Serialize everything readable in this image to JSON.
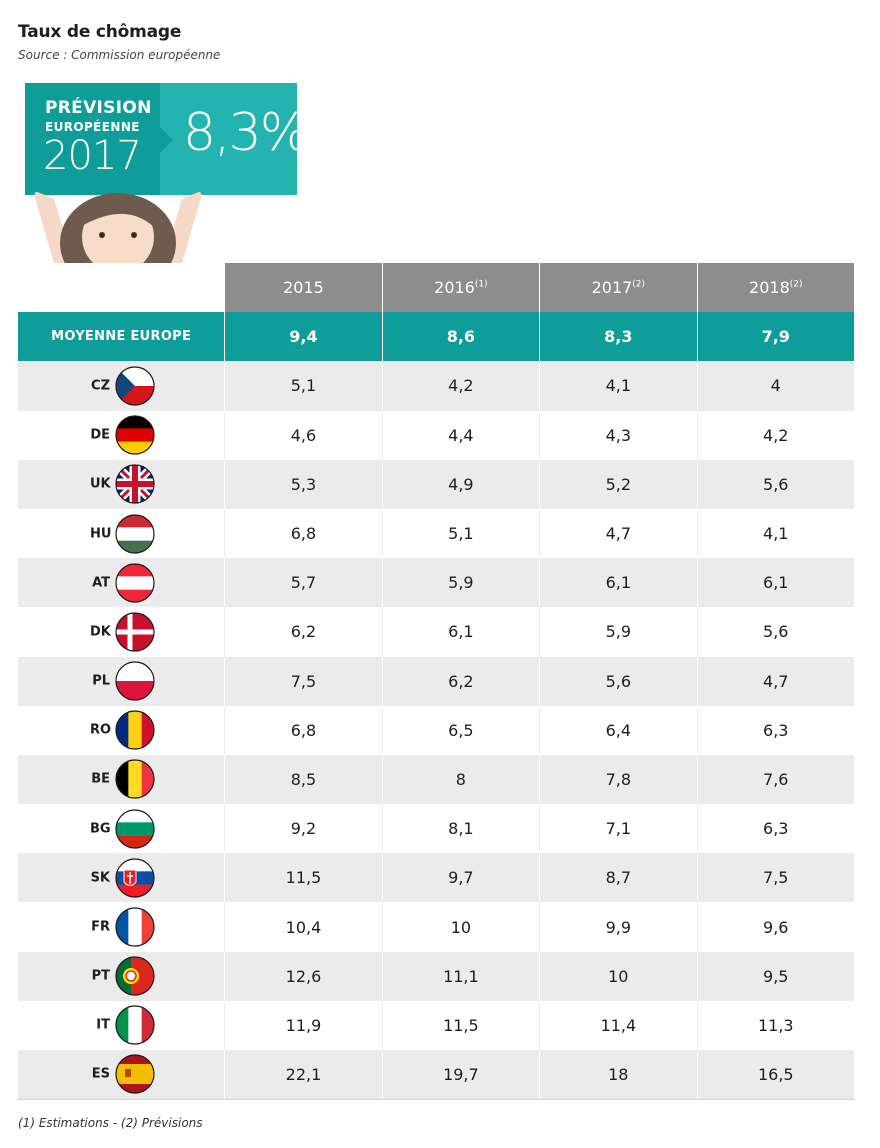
{
  "title": "Taux de chômage",
  "source": "Source : Commission européenne",
  "forecast": {
    "line1": "PRÉVISION",
    "line2": "EUROPÉENNE",
    "year": "2017",
    "value": "8,3%"
  },
  "footnote": "(1) Estimations - (2) Prévisions",
  "colors": {
    "teal_dark": "#0e9d98",
    "teal_light": "#24b4b0",
    "header_gray": "#8d8d8d",
    "row_gray": "#ebebeb"
  },
  "chart_data": {
    "type": "table",
    "columns": [
      {
        "label": "2015",
        "note": ""
      },
      {
        "label": "2016",
        "note": "(1)"
      },
      {
        "label": "2017",
        "note": "(2)"
      },
      {
        "label": "2018",
        "note": "(2)"
      }
    ],
    "average": {
      "label": "MOYENNE EUROPE",
      "values": [
        "9,4",
        "8,6",
        "8,3",
        "7,9"
      ]
    },
    "rows": [
      {
        "code": "CZ",
        "flag": "czech-flag-icon",
        "values": [
          "5,1",
          "4,2",
          "4,1",
          "4"
        ]
      },
      {
        "code": "DE",
        "flag": "germany-flag-icon",
        "values": [
          "4,6",
          "4,4",
          "4,3",
          "4,2"
        ]
      },
      {
        "code": "UK",
        "flag": "uk-flag-icon",
        "values": [
          "5,3",
          "4,9",
          "5,2",
          "5,6"
        ]
      },
      {
        "code": "HU",
        "flag": "hungary-flag-icon",
        "values": [
          "6,8",
          "5,1",
          "4,7",
          "4,1"
        ]
      },
      {
        "code": "AT",
        "flag": "austria-flag-icon",
        "values": [
          "5,7",
          "5,9",
          "6,1",
          "6,1"
        ]
      },
      {
        "code": "DK",
        "flag": "denmark-flag-icon",
        "values": [
          "6,2",
          "6,1",
          "5,9",
          "5,6"
        ]
      },
      {
        "code": "PL",
        "flag": "poland-flag-icon",
        "values": [
          "7,5",
          "6,2",
          "5,6",
          "4,7"
        ]
      },
      {
        "code": "RO",
        "flag": "romania-flag-icon",
        "values": [
          "6,8",
          "6,5",
          "6,4",
          "6,3"
        ]
      },
      {
        "code": "BE",
        "flag": "belgium-flag-icon",
        "values": [
          "8,5",
          "8",
          "7,8",
          "7,6"
        ]
      },
      {
        "code": "BG",
        "flag": "bulgaria-flag-icon",
        "values": [
          "9,2",
          "8,1",
          "7,1",
          "6,3"
        ]
      },
      {
        "code": "SK",
        "flag": "slovakia-flag-icon",
        "values": [
          "11,5",
          "9,7",
          "8,7",
          "7,5"
        ]
      },
      {
        "code": "FR",
        "flag": "france-flag-icon",
        "values": [
          "10,4",
          "10",
          "9,9",
          "9,6"
        ]
      },
      {
        "code": "PT",
        "flag": "portugal-flag-icon",
        "values": [
          "12,6",
          "11,1",
          "10",
          "9,5"
        ]
      },
      {
        "code": "IT",
        "flag": "italy-flag-icon",
        "values": [
          "11,9",
          "11,5",
          "11,4",
          "11,3"
        ]
      },
      {
        "code": "ES",
        "flag": "spain-flag-icon",
        "values": [
          "22,1",
          "19,7",
          "18",
          "16,5"
        ]
      }
    ]
  }
}
